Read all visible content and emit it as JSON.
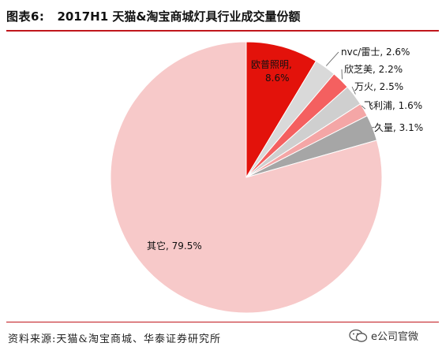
{
  "header": {
    "figure_label": "图表6:",
    "title": "2017H1 天猫&淘宝商城灯具行业成交量份额"
  },
  "chart_data": {
    "type": "pie",
    "title": "2017H1 天猫&淘宝商城灯具行业成交量份额",
    "slices": [
      {
        "name": "欧普照明",
        "value": 8.6,
        "label_line1": "欧普照明,",
        "label_line2": "8.6%",
        "color": "#e3120b"
      },
      {
        "name": "nvc/雷士",
        "value": 2.6,
        "label_line1": "nvc/雷士, 2.6%",
        "color": "#d9d9d9"
      },
      {
        "name": "欣芝美",
        "value": 2.2,
        "label_line1": "欣芝美, 2.2%",
        "color": "#f46060"
      },
      {
        "name": "万火",
        "value": 2.5,
        "label_line1": "万火, 2.5%",
        "color": "#cfcfcf"
      },
      {
        "name": "飞利浦",
        "value": 1.6,
        "label_line1": "飞利浦, 1.6%",
        "color": "#f4a6a6"
      },
      {
        "name": "久量",
        "value": 3.1,
        "label_line1": "久量, 3.1%",
        "color": "#a6a6a6"
      },
      {
        "name": "其它",
        "value": 79.5,
        "label_line1": "其它, 79.5%",
        "color": "#f7c9c9"
      }
    ]
  },
  "footer": {
    "source": "资料来源:天猫&淘宝商城、华泰证券研究所",
    "watermark": "e公司官微"
  }
}
